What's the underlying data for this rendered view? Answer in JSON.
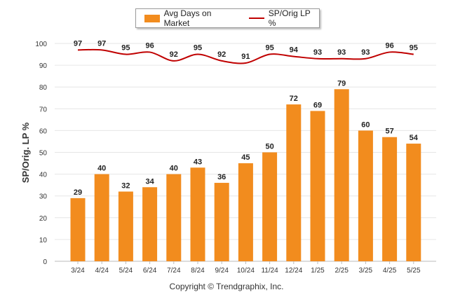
{
  "chart_data": {
    "type": "bar",
    "categories": [
      "3/24",
      "4/24",
      "5/24",
      "6/24",
      "7/24",
      "8/24",
      "9/24",
      "10/24",
      "11/24",
      "12/24",
      "1/25",
      "2/25",
      "3/25",
      "4/25",
      "5/25"
    ],
    "series": [
      {
        "name": "Avg Days on Market",
        "type": "bar",
        "color": "#f28c1e",
        "values": [
          29,
          40,
          32,
          34,
          40,
          43,
          36,
          45,
          50,
          72,
          69,
          79,
          60,
          57,
          54
        ]
      },
      {
        "name": "SP/Orig LP %",
        "type": "line",
        "color": "#c00000",
        "values": [
          97,
          97,
          95,
          96,
          92,
          95,
          92,
          91,
          95,
          94,
          93,
          93,
          93,
          96,
          95
        ]
      }
    ],
    "ylabel": "SP/Orig. LP %",
    "ylim": [
      0,
      100
    ],
    "yticks": [
      0,
      10,
      20,
      30,
      40,
      50,
      60,
      70,
      80,
      90,
      100
    ],
    "grid": true,
    "legend_position": "top-center"
  },
  "footer": "Copyright © Trendgraphix, Inc."
}
